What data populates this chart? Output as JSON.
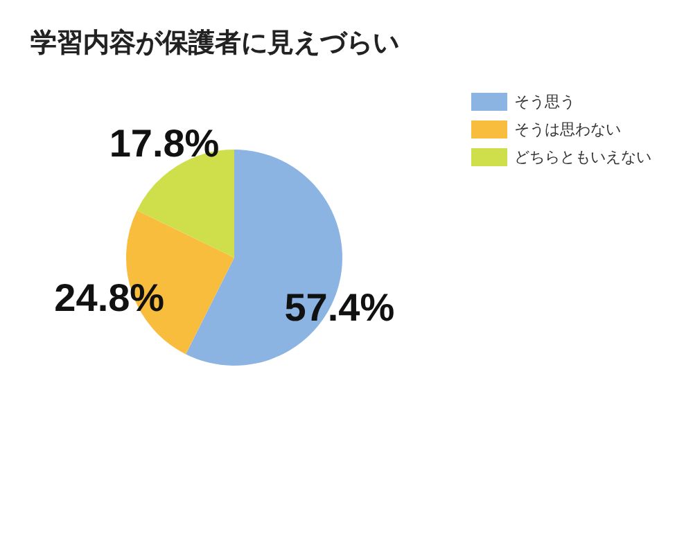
{
  "chart_data": {
    "type": "pie",
    "title": "学習内容が保護者に見えづらい",
    "categories": [
      "そう思う",
      "そうは思わない",
      "どちらともいえない"
    ],
    "values": [
      57.4,
      24.8,
      17.8
    ],
    "colors": [
      "#8cb4e2",
      "#f9bd3e",
      "#cfdf4c"
    ],
    "value_labels": [
      "57.4%",
      "24.8%",
      "17.8%"
    ],
    "legend": "top right"
  }
}
